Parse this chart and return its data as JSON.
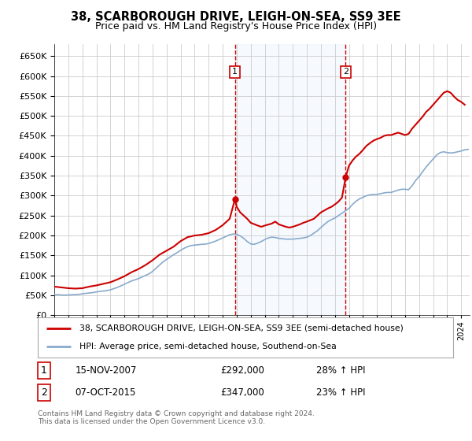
{
  "title": "38, SCARBOROUGH DRIVE, LEIGH-ON-SEA, SS9 3EE",
  "subtitle": "Price paid vs. HM Land Registry's House Price Index (HPI)",
  "legend_line1": "38, SCARBOROUGH DRIVE, LEIGH-ON-SEA, SS9 3EE (semi-detached house)",
  "legend_line2": "HPI: Average price, semi-detached house, Southend-on-Sea",
  "annotation1_num": "1",
  "annotation1_date": "15-NOV-2007",
  "annotation1_price": "£292,000",
  "annotation1_hpi": "28% ↑ HPI",
  "annotation1_year": 2007.88,
  "annotation1_price_val": 292000,
  "annotation2_num": "2",
  "annotation2_date": "07-OCT-2015",
  "annotation2_price": "£347,000",
  "annotation2_hpi": "23% ↑ HPI",
  "annotation2_year": 2015.77,
  "annotation2_price_val": 347000,
  "ylim": [
    0,
    680000
  ],
  "yticks": [
    0,
    50000,
    100000,
    150000,
    200000,
    250000,
    300000,
    350000,
    400000,
    450000,
    500000,
    550000,
    600000,
    650000
  ],
  "bg_color": "#ffffff",
  "grid_color": "#cccccc",
  "hpi_color": "#88aacc",
  "price_color": "#cc0000",
  "annotation_box_color": "#cc0000",
  "shade_color": "#ddeeff",
  "footer": "Contains HM Land Registry data © Crown copyright and database right 2024.\nThis data is licensed under the Open Government Licence v3.0.",
  "hpi_data": [
    [
      1995.0,
      52000
    ],
    [
      1995.25,
      51500
    ],
    [
      1995.5,
      51000
    ],
    [
      1995.75,
      50500
    ],
    [
      1996.0,
      51000
    ],
    [
      1996.25,
      51500
    ],
    [
      1996.5,
      52000
    ],
    [
      1996.75,
      52500
    ],
    [
      1997.0,
      54000
    ],
    [
      1997.25,
      55000
    ],
    [
      1997.5,
      56000
    ],
    [
      1997.75,
      57000
    ],
    [
      1998.0,
      58500
    ],
    [
      1998.25,
      60000
    ],
    [
      1998.5,
      61000
    ],
    [
      1998.75,
      62000
    ],
    [
      1999.0,
      64000
    ],
    [
      1999.25,
      67000
    ],
    [
      1999.5,
      70000
    ],
    [
      1999.75,
      74000
    ],
    [
      2000.0,
      78000
    ],
    [
      2000.25,
      82000
    ],
    [
      2000.5,
      86000
    ],
    [
      2000.75,
      89000
    ],
    [
      2001.0,
      92000
    ],
    [
      2001.25,
      96000
    ],
    [
      2001.5,
      100000
    ],
    [
      2001.75,
      104000
    ],
    [
      2002.0,
      110000
    ],
    [
      2002.25,
      118000
    ],
    [
      2002.5,
      126000
    ],
    [
      2002.75,
      134000
    ],
    [
      2003.0,
      140000
    ],
    [
      2003.25,
      146000
    ],
    [
      2003.5,
      152000
    ],
    [
      2003.75,
      157000
    ],
    [
      2004.0,
      163000
    ],
    [
      2004.25,
      168000
    ],
    [
      2004.5,
      172000
    ],
    [
      2004.75,
      175000
    ],
    [
      2005.0,
      176000
    ],
    [
      2005.25,
      177000
    ],
    [
      2005.5,
      178000
    ],
    [
      2005.75,
      178500
    ],
    [
      2006.0,
      180000
    ],
    [
      2006.25,
      183000
    ],
    [
      2006.5,
      186000
    ],
    [
      2006.75,
      190000
    ],
    [
      2007.0,
      194000
    ],
    [
      2007.25,
      198000
    ],
    [
      2007.5,
      202000
    ],
    [
      2007.75,
      204000
    ],
    [
      2008.0,
      203000
    ],
    [
      2008.25,
      199000
    ],
    [
      2008.5,
      193000
    ],
    [
      2008.75,
      185000
    ],
    [
      2009.0,
      179000
    ],
    [
      2009.25,
      178000
    ],
    [
      2009.5,
      181000
    ],
    [
      2009.75,
      185000
    ],
    [
      2010.0,
      190000
    ],
    [
      2010.25,
      194000
    ],
    [
      2010.5,
      196000
    ],
    [
      2010.75,
      195000
    ],
    [
      2011.0,
      193000
    ],
    [
      2011.25,
      192000
    ],
    [
      2011.5,
      191000
    ],
    [
      2011.75,
      191000
    ],
    [
      2012.0,
      191000
    ],
    [
      2012.25,
      192000
    ],
    [
      2012.5,
      193000
    ],
    [
      2012.75,
      194000
    ],
    [
      2013.0,
      196000
    ],
    [
      2013.25,
      200000
    ],
    [
      2013.5,
      206000
    ],
    [
      2013.75,
      212000
    ],
    [
      2014.0,
      220000
    ],
    [
      2014.25,
      228000
    ],
    [
      2014.5,
      235000
    ],
    [
      2014.75,
      240000
    ],
    [
      2015.0,
      244000
    ],
    [
      2015.25,
      250000
    ],
    [
      2015.5,
      256000
    ],
    [
      2015.75,
      262000
    ],
    [
      2016.0,
      268000
    ],
    [
      2016.25,
      278000
    ],
    [
      2016.5,
      286000
    ],
    [
      2016.75,
      292000
    ],
    [
      2017.0,
      296000
    ],
    [
      2017.25,
      300000
    ],
    [
      2017.5,
      302000
    ],
    [
      2017.75,
      303000
    ],
    [
      2018.0,
      303000
    ],
    [
      2018.25,
      305000
    ],
    [
      2018.5,
      307000
    ],
    [
      2018.75,
      308000
    ],
    [
      2019.0,
      308000
    ],
    [
      2019.25,
      311000
    ],
    [
      2019.5,
      314000
    ],
    [
      2019.75,
      316000
    ],
    [
      2020.0,
      316000
    ],
    [
      2020.25,
      315000
    ],
    [
      2020.5,
      325000
    ],
    [
      2020.75,
      338000
    ],
    [
      2021.0,
      348000
    ],
    [
      2021.25,
      360000
    ],
    [
      2021.5,
      372000
    ],
    [
      2021.75,
      382000
    ],
    [
      2022.0,
      392000
    ],
    [
      2022.25,
      402000
    ],
    [
      2022.5,
      408000
    ],
    [
      2022.75,
      410000
    ],
    [
      2023.0,
      408000
    ],
    [
      2023.25,
      407000
    ],
    [
      2023.5,
      408000
    ],
    [
      2023.75,
      410000
    ],
    [
      2024.0,
      412000
    ],
    [
      2024.25,
      415000
    ],
    [
      2024.5,
      416000
    ]
  ],
  "price_data": [
    [
      1995.0,
      72000
    ],
    [
      1995.5,
      70000
    ],
    [
      1996.0,
      68000
    ],
    [
      1996.5,
      67000
    ],
    [
      1997.0,
      68000
    ],
    [
      1997.5,
      72000
    ],
    [
      1998.0,
      75000
    ],
    [
      1998.5,
      79000
    ],
    [
      1999.0,
      83000
    ],
    [
      1999.5,
      90000
    ],
    [
      2000.0,
      98000
    ],
    [
      2000.5,
      108000
    ],
    [
      2001.0,
      116000
    ],
    [
      2001.5,
      126000
    ],
    [
      2002.0,
      138000
    ],
    [
      2002.5,
      152000
    ],
    [
      2003.0,
      162000
    ],
    [
      2003.5,
      172000
    ],
    [
      2004.0,
      186000
    ],
    [
      2004.5,
      196000
    ],
    [
      2005.0,
      200000
    ],
    [
      2005.5,
      202000
    ],
    [
      2006.0,
      206000
    ],
    [
      2006.5,
      214000
    ],
    [
      2007.0,
      226000
    ],
    [
      2007.5,
      242000
    ],
    [
      2007.88,
      292000
    ],
    [
      2008.0,
      272000
    ],
    [
      2008.25,
      258000
    ],
    [
      2008.75,
      242000
    ],
    [
      2009.0,
      232000
    ],
    [
      2009.5,
      225000
    ],
    [
      2009.75,
      222000
    ],
    [
      2010.0,
      225000
    ],
    [
      2010.5,
      230000
    ],
    [
      2010.75,
      235000
    ],
    [
      2011.0,
      228000
    ],
    [
      2011.5,
      222000
    ],
    [
      2011.75,
      220000
    ],
    [
      2012.0,
      222000
    ],
    [
      2012.5,
      228000
    ],
    [
      2012.75,
      232000
    ],
    [
      2013.0,
      235000
    ],
    [
      2013.5,
      242000
    ],
    [
      2013.75,
      250000
    ],
    [
      2014.0,
      258000
    ],
    [
      2014.5,
      268000
    ],
    [
      2014.75,
      272000
    ],
    [
      2015.0,
      278000
    ],
    [
      2015.25,
      285000
    ],
    [
      2015.5,
      295000
    ],
    [
      2015.77,
      347000
    ],
    [
      2016.0,
      375000
    ],
    [
      2016.25,
      388000
    ],
    [
      2016.5,
      398000
    ],
    [
      2016.75,
      405000
    ],
    [
      2017.0,
      415000
    ],
    [
      2017.25,
      425000
    ],
    [
      2017.5,
      432000
    ],
    [
      2017.75,
      438000
    ],
    [
      2018.0,
      442000
    ],
    [
      2018.25,
      445000
    ],
    [
      2018.5,
      450000
    ],
    [
      2018.75,
      452000
    ],
    [
      2019.0,
      452000
    ],
    [
      2019.25,
      455000
    ],
    [
      2019.5,
      458000
    ],
    [
      2019.75,
      455000
    ],
    [
      2020.0,
      452000
    ],
    [
      2020.25,
      455000
    ],
    [
      2020.5,
      468000
    ],
    [
      2020.75,
      478000
    ],
    [
      2021.0,
      488000
    ],
    [
      2021.25,
      498000
    ],
    [
      2021.5,
      510000
    ],
    [
      2021.75,
      518000
    ],
    [
      2022.0,
      528000
    ],
    [
      2022.25,
      538000
    ],
    [
      2022.5,
      548000
    ],
    [
      2022.75,
      558000
    ],
    [
      2023.0,
      562000
    ],
    [
      2023.25,
      558000
    ],
    [
      2023.5,
      548000
    ],
    [
      2023.75,
      540000
    ],
    [
      2024.0,
      535000
    ],
    [
      2024.25,
      528000
    ]
  ]
}
